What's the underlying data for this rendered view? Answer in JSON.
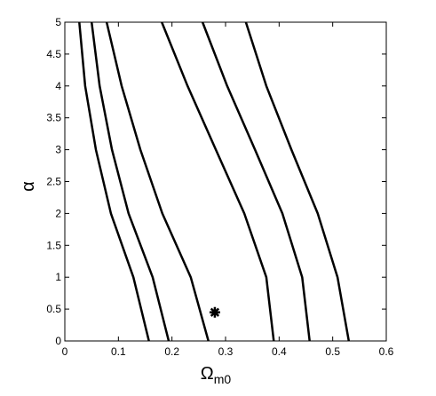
{
  "chart_data": {
    "type": "line",
    "xlabel": "Ω",
    "xlabel_sub": "m0",
    "ylabel": "α",
    "xlim": [
      0,
      0.6
    ],
    "ylim": [
      0,
      5
    ],
    "xticks": [
      0,
      0.1,
      0.2,
      0.3,
      0.4,
      0.5,
      0.6
    ],
    "yticks": [
      0,
      0.5,
      1,
      1.5,
      2,
      2.5,
      3,
      3.5,
      4,
      4.5,
      5
    ],
    "series": [
      {
        "color": "#000000",
        "x": [
          0.157,
          0.128,
          0.086,
          0.058,
          0.038,
          0.027
        ],
        "y": [
          0,
          1,
          2,
          3,
          4,
          5
        ]
      },
      {
        "color": "#000000",
        "x": [
          0.194,
          0.164,
          0.119,
          0.088,
          0.065,
          0.05
        ],
        "y": [
          0,
          1,
          2,
          3,
          4,
          5
        ]
      },
      {
        "color": "#000000",
        "x": [
          0.268,
          0.235,
          0.182,
          0.141,
          0.106,
          0.078
        ],
        "y": [
          0,
          1,
          2,
          3,
          4,
          5
        ]
      },
      {
        "color": "#000000",
        "x": [
          0.39,
          0.376,
          0.335,
          0.282,
          0.229,
          0.181
        ],
        "y": [
          0,
          1,
          2,
          3,
          4,
          5
        ]
      },
      {
        "color": "#000000",
        "x": [
          0.457,
          0.443,
          0.406,
          0.355,
          0.303,
          0.257
        ],
        "y": [
          0,
          1,
          2,
          3,
          4,
          5
        ]
      },
      {
        "color": "#000000",
        "x": [
          0.53,
          0.509,
          0.472,
          0.423,
          0.376,
          0.338
        ],
        "y": [
          0,
          1,
          2,
          3,
          4,
          5
        ]
      }
    ],
    "marker": {
      "x": 0.28,
      "y": 0.45,
      "color": "#000000"
    }
  }
}
